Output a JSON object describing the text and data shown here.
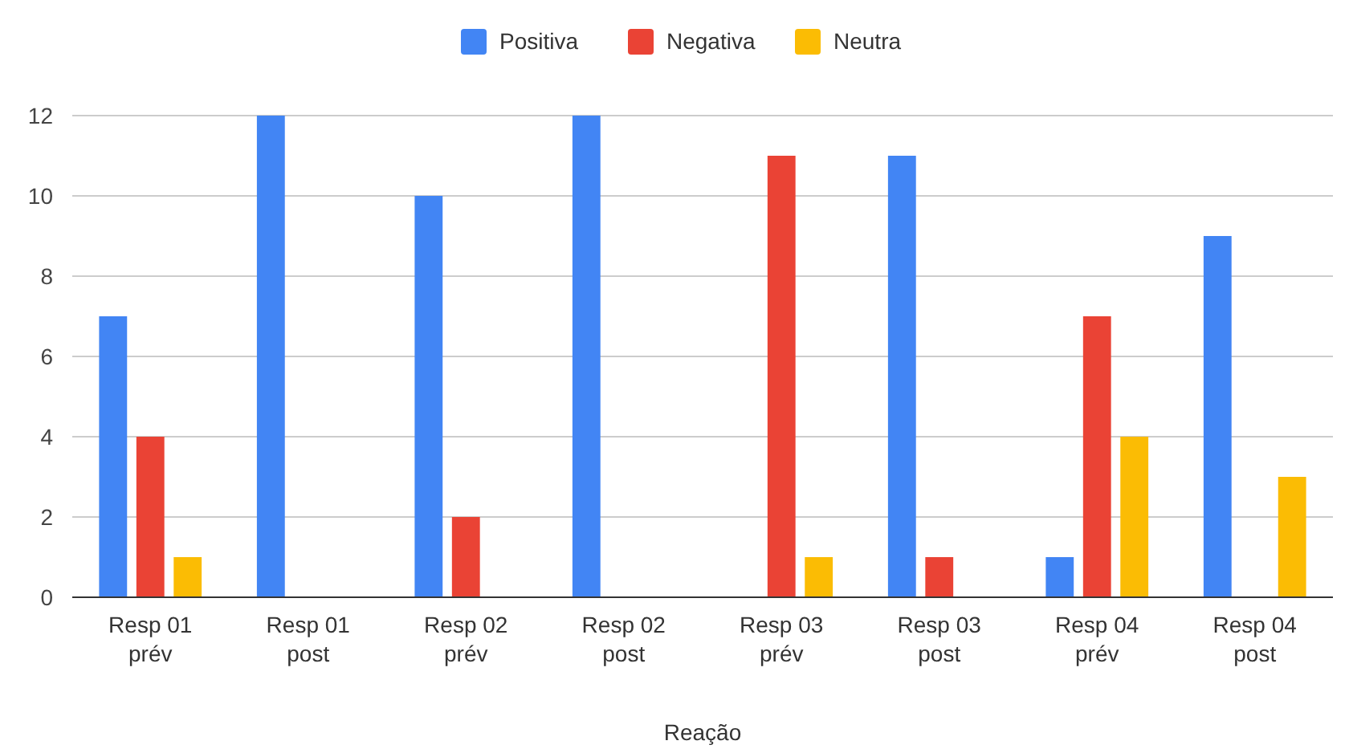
{
  "chart_data": {
    "type": "bar",
    "xlabel": "Reação",
    "categories": [
      "Resp 01\nprév",
      "Resp 01\npost",
      "Resp 02\nprév",
      "Resp 02\npost",
      "Resp 03\nprév",
      "Resp 03\npost",
      "Resp 04\nprév",
      "Resp 04\npost"
    ],
    "series": [
      {
        "name": "Positiva",
        "color": "#4285f4",
        "values": [
          7,
          12,
          10,
          12,
          0,
          11,
          1,
          9
        ]
      },
      {
        "name": "Negativa",
        "color": "#ea4335",
        "values": [
          4,
          0,
          2,
          0,
          11,
          1,
          7,
          0
        ]
      },
      {
        "name": "Neutra",
        "color": "#fbbc04",
        "values": [
          1,
          0,
          0,
          0,
          1,
          0,
          4,
          3
        ]
      }
    ],
    "ylim": [
      0,
      12
    ],
    "yticks": [
      0,
      2,
      4,
      6,
      8,
      10,
      12
    ],
    "grid": "y",
    "legend": "top"
  }
}
